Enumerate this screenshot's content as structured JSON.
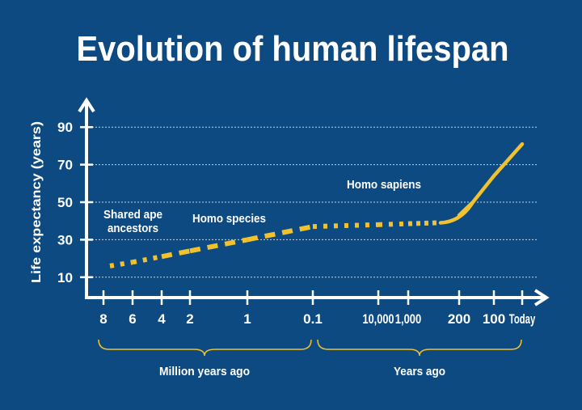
{
  "chart_data": {
    "type": "line",
    "title": "Evolution of human lifespan",
    "ylabel": "Life expectancy (years)",
    "ylim": [
      0,
      100
    ],
    "yticks": [
      "90",
      "70",
      "50",
      "30",
      "10"
    ],
    "ytick_values": [
      90,
      70,
      50,
      30,
      10
    ],
    "grid": true,
    "x_tick_labels": [
      "8",
      "6",
      "4",
      "2",
      "1",
      "0.1",
      "10,000",
      "1,000",
      "200",
      "100",
      "Today"
    ],
    "x_groups": [
      {
        "label": "Million years ago",
        "ticks": [
          "8",
          "6",
          "4",
          "2",
          "1",
          "0.1"
        ]
      },
      {
        "label": "Years ago",
        "ticks": [
          "10,000",
          "1,000",
          "200",
          "100",
          "Today"
        ]
      }
    ],
    "series": [
      {
        "x": [
          "8",
          "6",
          "4",
          "2",
          "1",
          "0.1",
          "10,000",
          "1,000",
          "200",
          "100",
          "Today"
        ],
        "values": [
          16,
          18,
          21,
          24,
          30,
          37,
          38,
          38.5,
          43,
          64,
          81
        ],
        "segment_styles": [
          "dotted",
          "dotted",
          "dashed",
          "dashed",
          "dashed",
          "dotted",
          "dotted",
          "solid",
          "solid",
          "solid"
        ]
      }
    ],
    "annotations": [
      {
        "text": "Shared ape",
        "region": "8–4 million years ago"
      },
      {
        "text": "ancestors",
        "region": "8–4 million years ago"
      },
      {
        "text": "Homo species",
        "region": "2–1 million years ago"
      },
      {
        "text": "Homo sapiens",
        "region": "10,000–1,000 years ago"
      }
    ],
    "colors": {
      "background": "#0d4a82",
      "line": "#f2c12e",
      "axes": "#ffffff",
      "grid": "#c9d6e6"
    }
  }
}
